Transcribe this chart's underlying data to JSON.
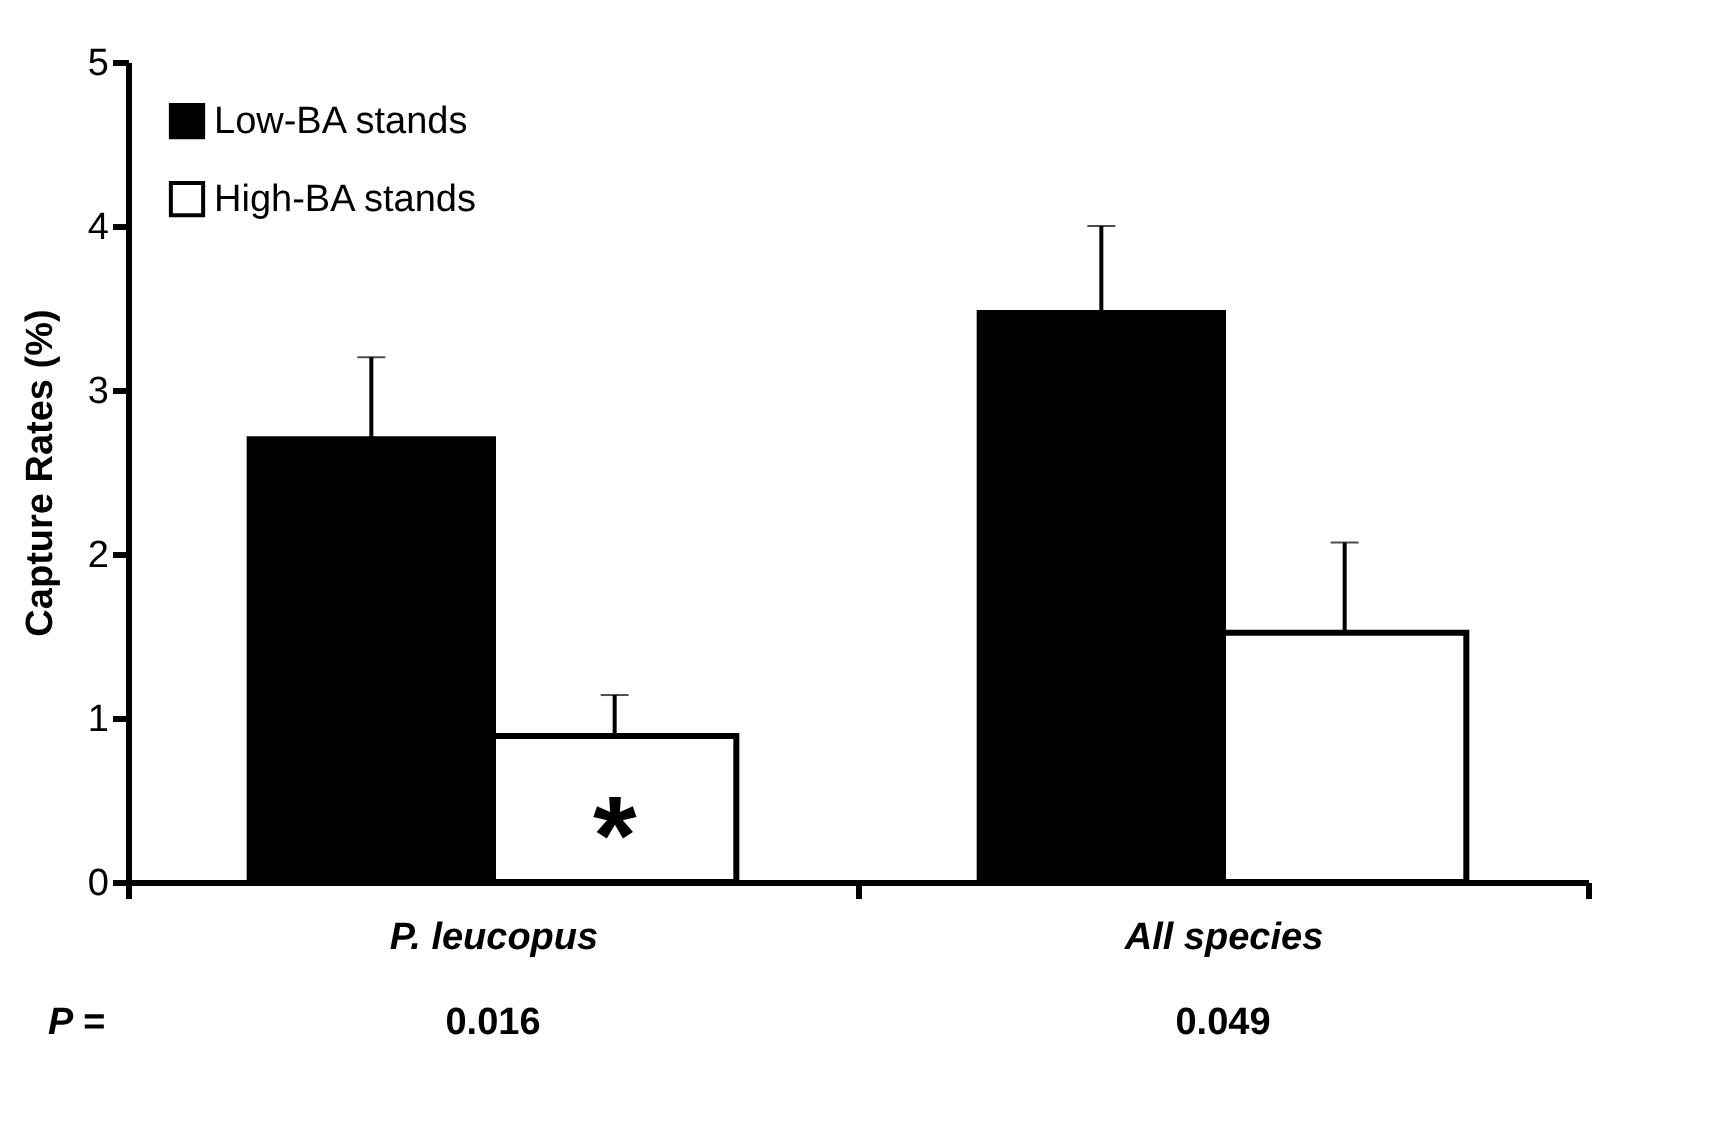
{
  "chart_data": {
    "type": "bar",
    "ylabel": "Capture Rates (%)",
    "categories": [
      "P. leucopus",
      "All species"
    ],
    "series": [
      {
        "name": "Low-BA stands",
        "color": "#000000",
        "values": [
          2.7,
          3.47
        ],
        "errors": [
          [
            2.7,
            3.2
          ],
          [
            3.47,
            4.0
          ]
        ]
      },
      {
        "name": "High-BA stands",
        "color": "#ffffff",
        "values": [
          0.89,
          1.52
        ],
        "errors": [
          [
            0.89,
            1.14
          ],
          [
            1.52,
            2.07
          ]
        ]
      }
    ],
    "ylim": [
      0,
      5
    ],
    "yticks": [
      0,
      1,
      2,
      3,
      4,
      5
    ],
    "grid": false,
    "legend": "top left",
    "annotations": [
      {
        "text": "*",
        "x": "P. leucopus",
        "y": 0.4
      },
      "P =",
      "0.016",
      "0.049"
    ]
  }
}
